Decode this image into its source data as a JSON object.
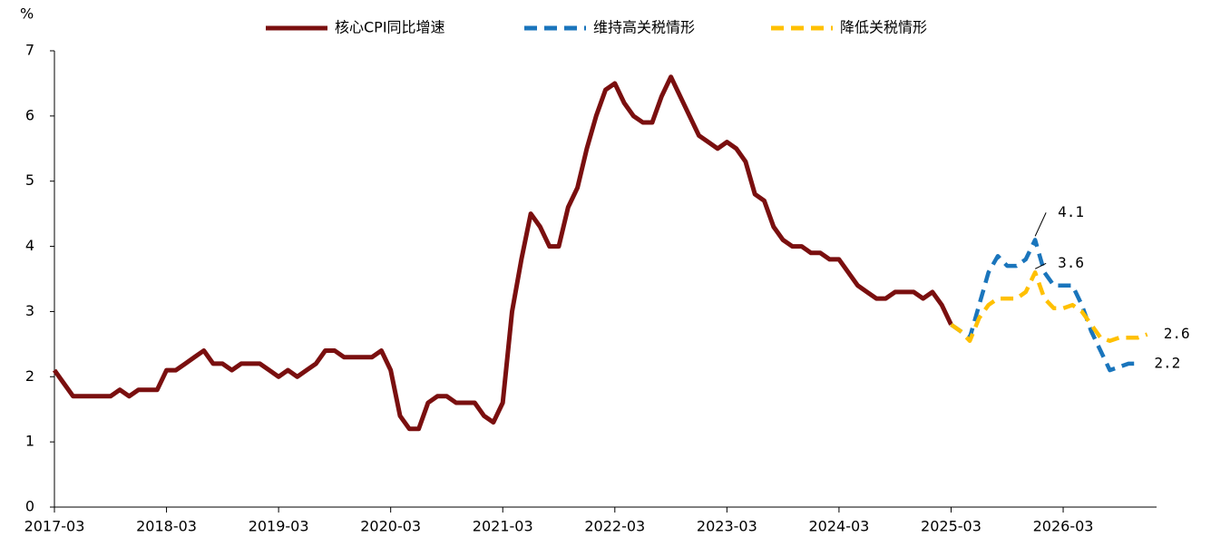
{
  "chart_data": {
    "type": "line",
    "y_unit": "%",
    "x": [
      "2017-03",
      "2017-04",
      "2017-05",
      "2017-06",
      "2017-07",
      "2017-08",
      "2017-09",
      "2017-10",
      "2017-11",
      "2017-12",
      "2018-01",
      "2018-02",
      "2018-03",
      "2018-04",
      "2018-05",
      "2018-06",
      "2018-07",
      "2018-08",
      "2018-09",
      "2018-10",
      "2018-11",
      "2018-12",
      "2019-01",
      "2019-02",
      "2019-03",
      "2019-04",
      "2019-05",
      "2019-06",
      "2019-07",
      "2019-08",
      "2019-09",
      "2019-10",
      "2019-11",
      "2019-12",
      "2020-01",
      "2020-02",
      "2020-03",
      "2020-04",
      "2020-05",
      "2020-06",
      "2020-07",
      "2020-08",
      "2020-09",
      "2020-10",
      "2020-11",
      "2020-12",
      "2021-01",
      "2021-02",
      "2021-03",
      "2021-04",
      "2021-05",
      "2021-06",
      "2021-07",
      "2021-08",
      "2021-09",
      "2021-10",
      "2021-11",
      "2021-12",
      "2022-01",
      "2022-02",
      "2022-03",
      "2022-04",
      "2022-05",
      "2022-06",
      "2022-07",
      "2022-08",
      "2022-09",
      "2022-10",
      "2022-11",
      "2022-12",
      "2023-01",
      "2023-02",
      "2023-03",
      "2023-04",
      "2023-05",
      "2023-06",
      "2023-07",
      "2023-08",
      "2023-09",
      "2023-10",
      "2023-11",
      "2023-12",
      "2024-01",
      "2024-02",
      "2024-03",
      "2024-04",
      "2024-05",
      "2024-06",
      "2024-07",
      "2024-08",
      "2024-09",
      "2024-10",
      "2024-11",
      "2024-12",
      "2025-01",
      "2025-02",
      "2025-03",
      "2025-04",
      "2025-05",
      "2025-06",
      "2025-07",
      "2025-08",
      "2025-09",
      "2025-10",
      "2025-11",
      "2025-12",
      "2026-01",
      "2026-02",
      "2026-03",
      "2026-04",
      "2026-05",
      "2026-06",
      "2026-07",
      "2026-08",
      "2026-09",
      "2026-10",
      "2026-11",
      "2026-12",
      "2027-01"
    ],
    "xticks": [
      "2017-03",
      "2018-03",
      "2019-03",
      "2020-03",
      "2021-03",
      "2022-03",
      "2023-03",
      "2024-03",
      "2025-03",
      "2026-03"
    ],
    "ylim": [
      0,
      7
    ],
    "yticks": [
      0,
      1,
      2,
      3,
      4,
      5,
      6,
      7
    ],
    "series": [
      {
        "name": "核心CPI同比增速",
        "color": "#7a0f0f",
        "dashed": false,
        "values": [
          2.1,
          1.9,
          1.7,
          1.7,
          1.7,
          1.7,
          1.7,
          1.8,
          1.7,
          1.8,
          1.8,
          1.8,
          2.1,
          2.1,
          2.2,
          2.3,
          2.4,
          2.2,
          2.2,
          2.1,
          2.2,
          2.2,
          2.2,
          2.1,
          2.0,
          2.1,
          2.0,
          2.1,
          2.2,
          2.4,
          2.4,
          2.3,
          2.3,
          2.3,
          2.3,
          2.4,
          2.1,
          1.4,
          1.2,
          1.2,
          1.6,
          1.7,
          1.7,
          1.6,
          1.6,
          1.6,
          1.4,
          1.3,
          1.6,
          3.0,
          3.8,
          4.5,
          4.3,
          4.0,
          4.0,
          4.6,
          4.9,
          5.5,
          6.0,
          6.4,
          6.5,
          6.2,
          6.0,
          5.9,
          5.9,
          6.3,
          6.6,
          6.3,
          6.0,
          5.7,
          5.6,
          5.5,
          5.6,
          5.5,
          5.3,
          4.8,
          4.7,
          4.3,
          4.1,
          4.0,
          4.0,
          3.9,
          3.9,
          3.8,
          3.8,
          3.6,
          3.4,
          3.3,
          3.2,
          3.2,
          3.3,
          3.3,
          3.3,
          3.2,
          3.3,
          3.1,
          2.8,
          null,
          null,
          null,
          null,
          null,
          null,
          null,
          null,
          null,
          null,
          null,
          null,
          null,
          null,
          null,
          null,
          null,
          null,
          null,
          null,
          null,
          null
        ]
      },
      {
        "name": "维持高关税情形",
        "color": "#1a75bc",
        "dashed": true,
        "values": [
          null,
          null,
          null,
          null,
          null,
          null,
          null,
          null,
          null,
          null,
          null,
          null,
          null,
          null,
          null,
          null,
          null,
          null,
          null,
          null,
          null,
          null,
          null,
          null,
          null,
          null,
          null,
          null,
          null,
          null,
          null,
          null,
          null,
          null,
          null,
          null,
          null,
          null,
          null,
          null,
          null,
          null,
          null,
          null,
          null,
          null,
          null,
          null,
          null,
          null,
          null,
          null,
          null,
          null,
          null,
          null,
          null,
          null,
          null,
          null,
          null,
          null,
          null,
          null,
          null,
          null,
          null,
          null,
          null,
          null,
          null,
          null,
          null,
          null,
          null,
          null,
          null,
          null,
          null,
          null,
          null,
          null,
          null,
          null,
          null,
          null,
          null,
          null,
          null,
          null,
          null,
          null,
          null,
          null,
          null,
          null,
          2.8,
          2.7,
          2.6,
          3.1,
          3.6,
          3.85,
          3.7,
          3.7,
          3.8,
          4.1,
          3.6,
          3.4,
          3.4,
          3.4,
          3.1,
          2.7,
          2.4,
          2.1,
          2.15,
          2.2,
          2.2,
          null,
          null
        ],
        "value_labels": [
          null,
          null,
          null,
          null,
          null,
          null,
          null,
          null,
          null,
          null,
          null,
          null,
          null,
          null,
          null,
          null,
          null,
          null,
          null,
          null,
          null,
          null,
          null,
          null,
          null,
          null,
          null,
          null,
          null,
          null,
          null,
          null,
          null,
          null,
          null,
          null,
          null,
          null,
          null,
          null,
          null,
          null,
          null,
          null,
          null,
          null,
          null,
          null,
          null,
          null,
          null,
          null,
          null,
          null,
          null,
          null,
          null,
          null,
          null,
          null,
          null,
          null,
          null,
          null,
          null,
          null,
          null,
          null,
          null,
          null,
          null,
          null,
          null,
          null,
          null,
          null,
          null,
          null,
          null,
          null,
          null,
          null,
          null,
          null,
          null,
          null,
          null,
          null,
          null,
          null,
          null,
          null,
          null,
          null,
          null,
          null,
          null,
          null,
          null,
          null,
          null,
          null,
          null,
          null,
          null,
          "4.1",
          null,
          null,
          null,
          null,
          null,
          null,
          null,
          null,
          null,
          null,
          "2.2",
          null,
          null
        ]
      },
      {
        "name": "降低关税情形",
        "color": "#ffc000",
        "dashed": true,
        "values": [
          null,
          null,
          null,
          null,
          null,
          null,
          null,
          null,
          null,
          null,
          null,
          null,
          null,
          null,
          null,
          null,
          null,
          null,
          null,
          null,
          null,
          null,
          null,
          null,
          null,
          null,
          null,
          null,
          null,
          null,
          null,
          null,
          null,
          null,
          null,
          null,
          null,
          null,
          null,
          null,
          null,
          null,
          null,
          null,
          null,
          null,
          null,
          null,
          null,
          null,
          null,
          null,
          null,
          null,
          null,
          null,
          null,
          null,
          null,
          null,
          null,
          null,
          null,
          null,
          null,
          null,
          null,
          null,
          null,
          null,
          null,
          null,
          null,
          null,
          null,
          null,
          null,
          null,
          null,
          null,
          null,
          null,
          null,
          null,
          null,
          null,
          null,
          null,
          null,
          null,
          null,
          null,
          null,
          null,
          null,
          null,
          2.8,
          2.7,
          2.55,
          2.9,
          3.1,
          3.2,
          3.2,
          3.2,
          3.3,
          3.6,
          3.2,
          3.05,
          3.05,
          3.1,
          3.0,
          2.8,
          2.6,
          2.55,
          2.6,
          2.6,
          2.6,
          2.65,
          null
        ],
        "value_labels": [
          null,
          null,
          null,
          null,
          null,
          null,
          null,
          null,
          null,
          null,
          null,
          null,
          null,
          null,
          null,
          null,
          null,
          null,
          null,
          null,
          null,
          null,
          null,
          null,
          null,
          null,
          null,
          null,
          null,
          null,
          null,
          null,
          null,
          null,
          null,
          null,
          null,
          null,
          null,
          null,
          null,
          null,
          null,
          null,
          null,
          null,
          null,
          null,
          null,
          null,
          null,
          null,
          null,
          null,
          null,
          null,
          null,
          null,
          null,
          null,
          null,
          null,
          null,
          null,
          null,
          null,
          null,
          null,
          null,
          null,
          null,
          null,
          null,
          null,
          null,
          null,
          null,
          null,
          null,
          null,
          null,
          null,
          null,
          null,
          null,
          null,
          null,
          null,
          null,
          null,
          null,
          null,
          null,
          null,
          null,
          null,
          null,
          null,
          null,
          null,
          null,
          null,
          null,
          null,
          null,
          "3.6",
          null,
          null,
          null,
          null,
          null,
          null,
          null,
          null,
          null,
          null,
          null,
          "2.6",
          null
        ]
      }
    ]
  }
}
